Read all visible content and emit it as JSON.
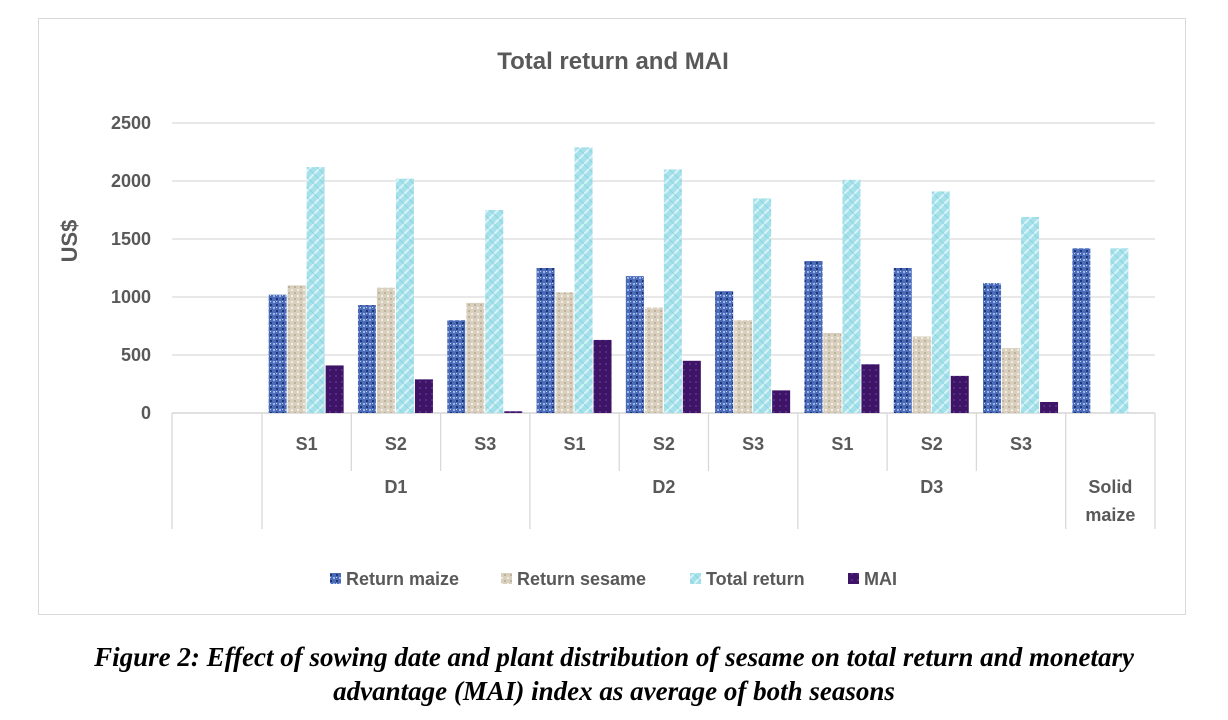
{
  "chart_data": {
    "type": "bar",
    "title": "Total return and MAI",
    "ylabel": "US$",
    "xlabel": "",
    "ylim": [
      0,
      2500
    ],
    "yticks": [
      0,
      500,
      1000,
      1500,
      2000,
      2500
    ],
    "grid": true,
    "legend_position": "bottom",
    "groups": [
      {
        "label": "D1",
        "categories": [
          "S1",
          "S2",
          "S3"
        ]
      },
      {
        "label": "D2",
        "categories": [
          "S1",
          "S2",
          "S3"
        ]
      },
      {
        "label": "D3",
        "categories": [
          "S1",
          "S2",
          "S3"
        ]
      },
      {
        "label": "",
        "categories": [
          "Solid maize"
        ]
      }
    ],
    "series": [
      {
        "name": "Return maize",
        "color": "#4a6bb8",
        "values": [
          1020,
          930,
          800,
          1250,
          1180,
          1050,
          1310,
          1250,
          1120,
          1420
        ]
      },
      {
        "name": "Return sesame",
        "color": "#d9cfbe",
        "values": [
          1100,
          1080,
          950,
          1040,
          910,
          800,
          690,
          660,
          560,
          null
        ]
      },
      {
        "name": "Total return",
        "color": "#a5e1ea",
        "values": [
          2120,
          2020,
          1750,
          2290,
          2100,
          1850,
          2010,
          1910,
          1690,
          1420
        ]
      },
      {
        "name": "MAI",
        "color": "#3e1466",
        "values": [
          410,
          290,
          15,
          630,
          450,
          195,
          420,
          320,
          95,
          null
        ]
      }
    ]
  },
  "caption": {
    "line1": "Figure 2: Effect of sowing date and plant distribution of sesame on total return and monetary",
    "line2": "advantage (MAI) index as average of both seasons"
  }
}
